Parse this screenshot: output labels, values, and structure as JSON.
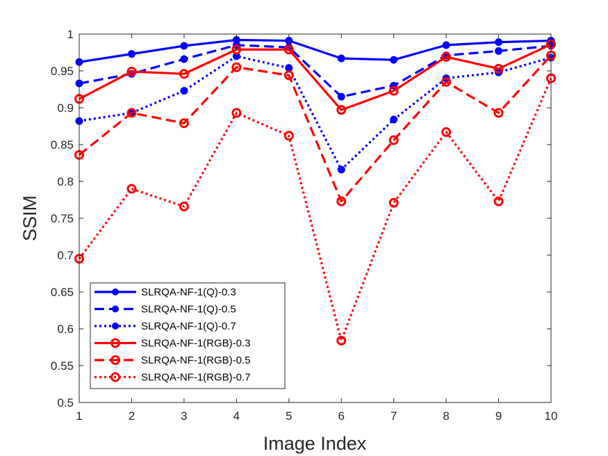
{
  "chart_data": {
    "type": "line",
    "title": "",
    "xlabel": "Image Index",
    "ylabel": "SSIM",
    "x": [
      1,
      2,
      3,
      4,
      5,
      6,
      7,
      8,
      9,
      10
    ],
    "xlim": [
      1,
      10
    ],
    "ylim": [
      0.5,
      1
    ],
    "xticks": [
      "1",
      "2",
      "3",
      "4",
      "5",
      "6",
      "7",
      "8",
      "9",
      "10"
    ],
    "yticks": [
      "0.5",
      "0.55",
      "0.6",
      "0.65",
      "0.7",
      "0.75",
      "0.8",
      "0.85",
      "0.9",
      "0.95",
      "1"
    ],
    "grid": false,
    "legend_position": "bottom-left",
    "series": [
      {
        "name": "SLRQA-NF-1(Q)-0.3",
        "color": "#0000ff",
        "line_style": "solid",
        "marker": "filled-circle",
        "values": [
          0.962,
          0.973,
          0.984,
          0.992,
          0.991,
          0.967,
          0.965,
          0.985,
          0.989,
          0.991
        ]
      },
      {
        "name": "SLRQA-NF-1(Q)-0.5",
        "color": "#0000ff",
        "line_style": "dashed",
        "marker": "filled-circle",
        "values": [
          0.933,
          0.946,
          0.966,
          0.985,
          0.982,
          0.915,
          0.93,
          0.971,
          0.977,
          0.984
        ]
      },
      {
        "name": "SLRQA-NF-1(Q)-0.7",
        "color": "#0000ff",
        "line_style": "dotted",
        "marker": "filled-circle",
        "values": [
          0.882,
          0.893,
          0.923,
          0.97,
          0.954,
          0.816,
          0.884,
          0.94,
          0.948,
          0.968
        ]
      },
      {
        "name": "SLRQA-NF-1(RGB)-0.3",
        "color": "#ff0000",
        "line_style": "solid",
        "marker": "open-circle",
        "values": [
          0.912,
          0.949,
          0.946,
          0.979,
          0.979,
          0.897,
          0.923,
          0.969,
          0.953,
          0.986
        ]
      },
      {
        "name": "SLRQA-NF-1(RGB)-0.5",
        "color": "#ff0000",
        "line_style": "dashed",
        "marker": "open-circle",
        "values": [
          0.836,
          0.893,
          0.879,
          0.955,
          0.944,
          0.773,
          0.856,
          0.935,
          0.893,
          0.971
        ]
      },
      {
        "name": "SLRQA-NF-1(RGB)-0.7",
        "color": "#ff0000",
        "line_style": "dotted",
        "marker": "open-circle",
        "values": [
          0.695,
          0.79,
          0.766,
          0.893,
          0.862,
          0.584,
          0.771,
          0.867,
          0.773,
          0.94
        ]
      }
    ]
  }
}
